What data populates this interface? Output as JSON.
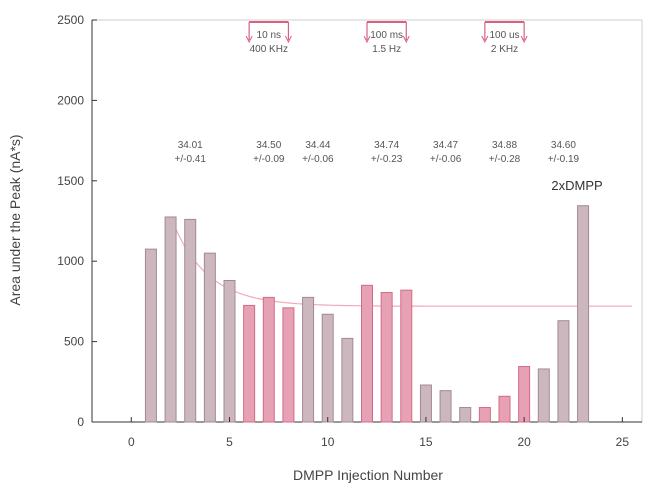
{
  "chart_data": {
    "type": "bar",
    "title": "",
    "xlabel": "DMPP Injection Number",
    "ylabel": "Area under the Peak (nA*s)",
    "xlim": [
      -2,
      26
    ],
    "ylim": [
      0,
      2500
    ],
    "xticks": [
      "0",
      "5",
      "10",
      "15",
      "20",
      "25"
    ],
    "yticks": [
      "0",
      "500",
      "1000",
      "1500",
      "2000",
      "2500"
    ],
    "grid": false,
    "bars": [
      {
        "x": 1,
        "y": 1075,
        "group": "gray"
      },
      {
        "x": 2,
        "y": 1275,
        "group": "gray"
      },
      {
        "x": 3,
        "y": 1260,
        "group": "gray"
      },
      {
        "x": 4,
        "y": 1050,
        "group": "gray"
      },
      {
        "x": 5,
        "y": 880,
        "group": "gray"
      },
      {
        "x": 6,
        "y": 725,
        "group": "pink"
      },
      {
        "x": 7,
        "y": 775,
        "group": "pink"
      },
      {
        "x": 8,
        "y": 710,
        "group": "pink"
      },
      {
        "x": 9,
        "y": 775,
        "group": "gray"
      },
      {
        "x": 10,
        "y": 670,
        "group": "gray"
      },
      {
        "x": 11,
        "y": 520,
        "group": "gray"
      },
      {
        "x": 12,
        "y": 850,
        "group": "pink"
      },
      {
        "x": 13,
        "y": 805,
        "group": "pink"
      },
      {
        "x": 14,
        "y": 820,
        "group": "pink"
      },
      {
        "x": 15,
        "y": 230,
        "group": "gray"
      },
      {
        "x": 16,
        "y": 195,
        "group": "gray"
      },
      {
        "x": 17,
        "y": 90,
        "group": "gray"
      },
      {
        "x": 18,
        "y": 90,
        "group": "pink"
      },
      {
        "x": 19,
        "y": 160,
        "group": "pink"
      },
      {
        "x": 20,
        "y": 345,
        "group": "pink"
      },
      {
        "x": 21,
        "y": 330,
        "group": "gray"
      },
      {
        "x": 22,
        "y": 630,
        "group": "gray"
      },
      {
        "x": 23,
        "y": 1345,
        "group": "gray"
      }
    ],
    "fit_curve": {
      "asymptote": 720,
      "start_x": 2,
      "start_y": 1275,
      "decay_rate": 0.55,
      "end_x": 25.5
    },
    "stimulation_markers": [
      {
        "x_start": 6,
        "x_end": 8,
        "label_line1": "10 ns",
        "label_line2": "400 KHz"
      },
      {
        "x_start": 12,
        "x_end": 14,
        "label_line1": "100 ms",
        "label_line2": "1.5 Hz"
      },
      {
        "x_start": 18,
        "x_end": 20,
        "label_line1": "100 us",
        "label_line2": "2 KHz"
      }
    ],
    "annotations": [
      {
        "x": 3,
        "line1": "34.01",
        "line2": "+/-0.41"
      },
      {
        "x": 7,
        "line1": "34.50",
        "line2": "+/-0.09"
      },
      {
        "x": 9.5,
        "line1": "34.44",
        "line2": "+/-0.06"
      },
      {
        "x": 13,
        "line1": "34.74",
        "line2": "+/-0.23"
      },
      {
        "x": 16,
        "line1": "34.47",
        "line2": "+/-0.06"
      },
      {
        "x": 19,
        "line1": "34.88",
        "line2": "+/-0.28"
      },
      {
        "x": 22,
        "line1": "34.60",
        "line2": "+/-0.19"
      }
    ],
    "special_label": {
      "x": 23,
      "text": "2xDMPP"
    },
    "colors": {
      "gray_fill": "#cbb7bd",
      "gray_stroke": "#a38a92",
      "pink_fill": "#e7a1b5",
      "pink_stroke": "#d46a88",
      "fit_line": "#f0aab8",
      "marker": "#d9607e",
      "axis": "#333333",
      "text": "#555555"
    }
  }
}
